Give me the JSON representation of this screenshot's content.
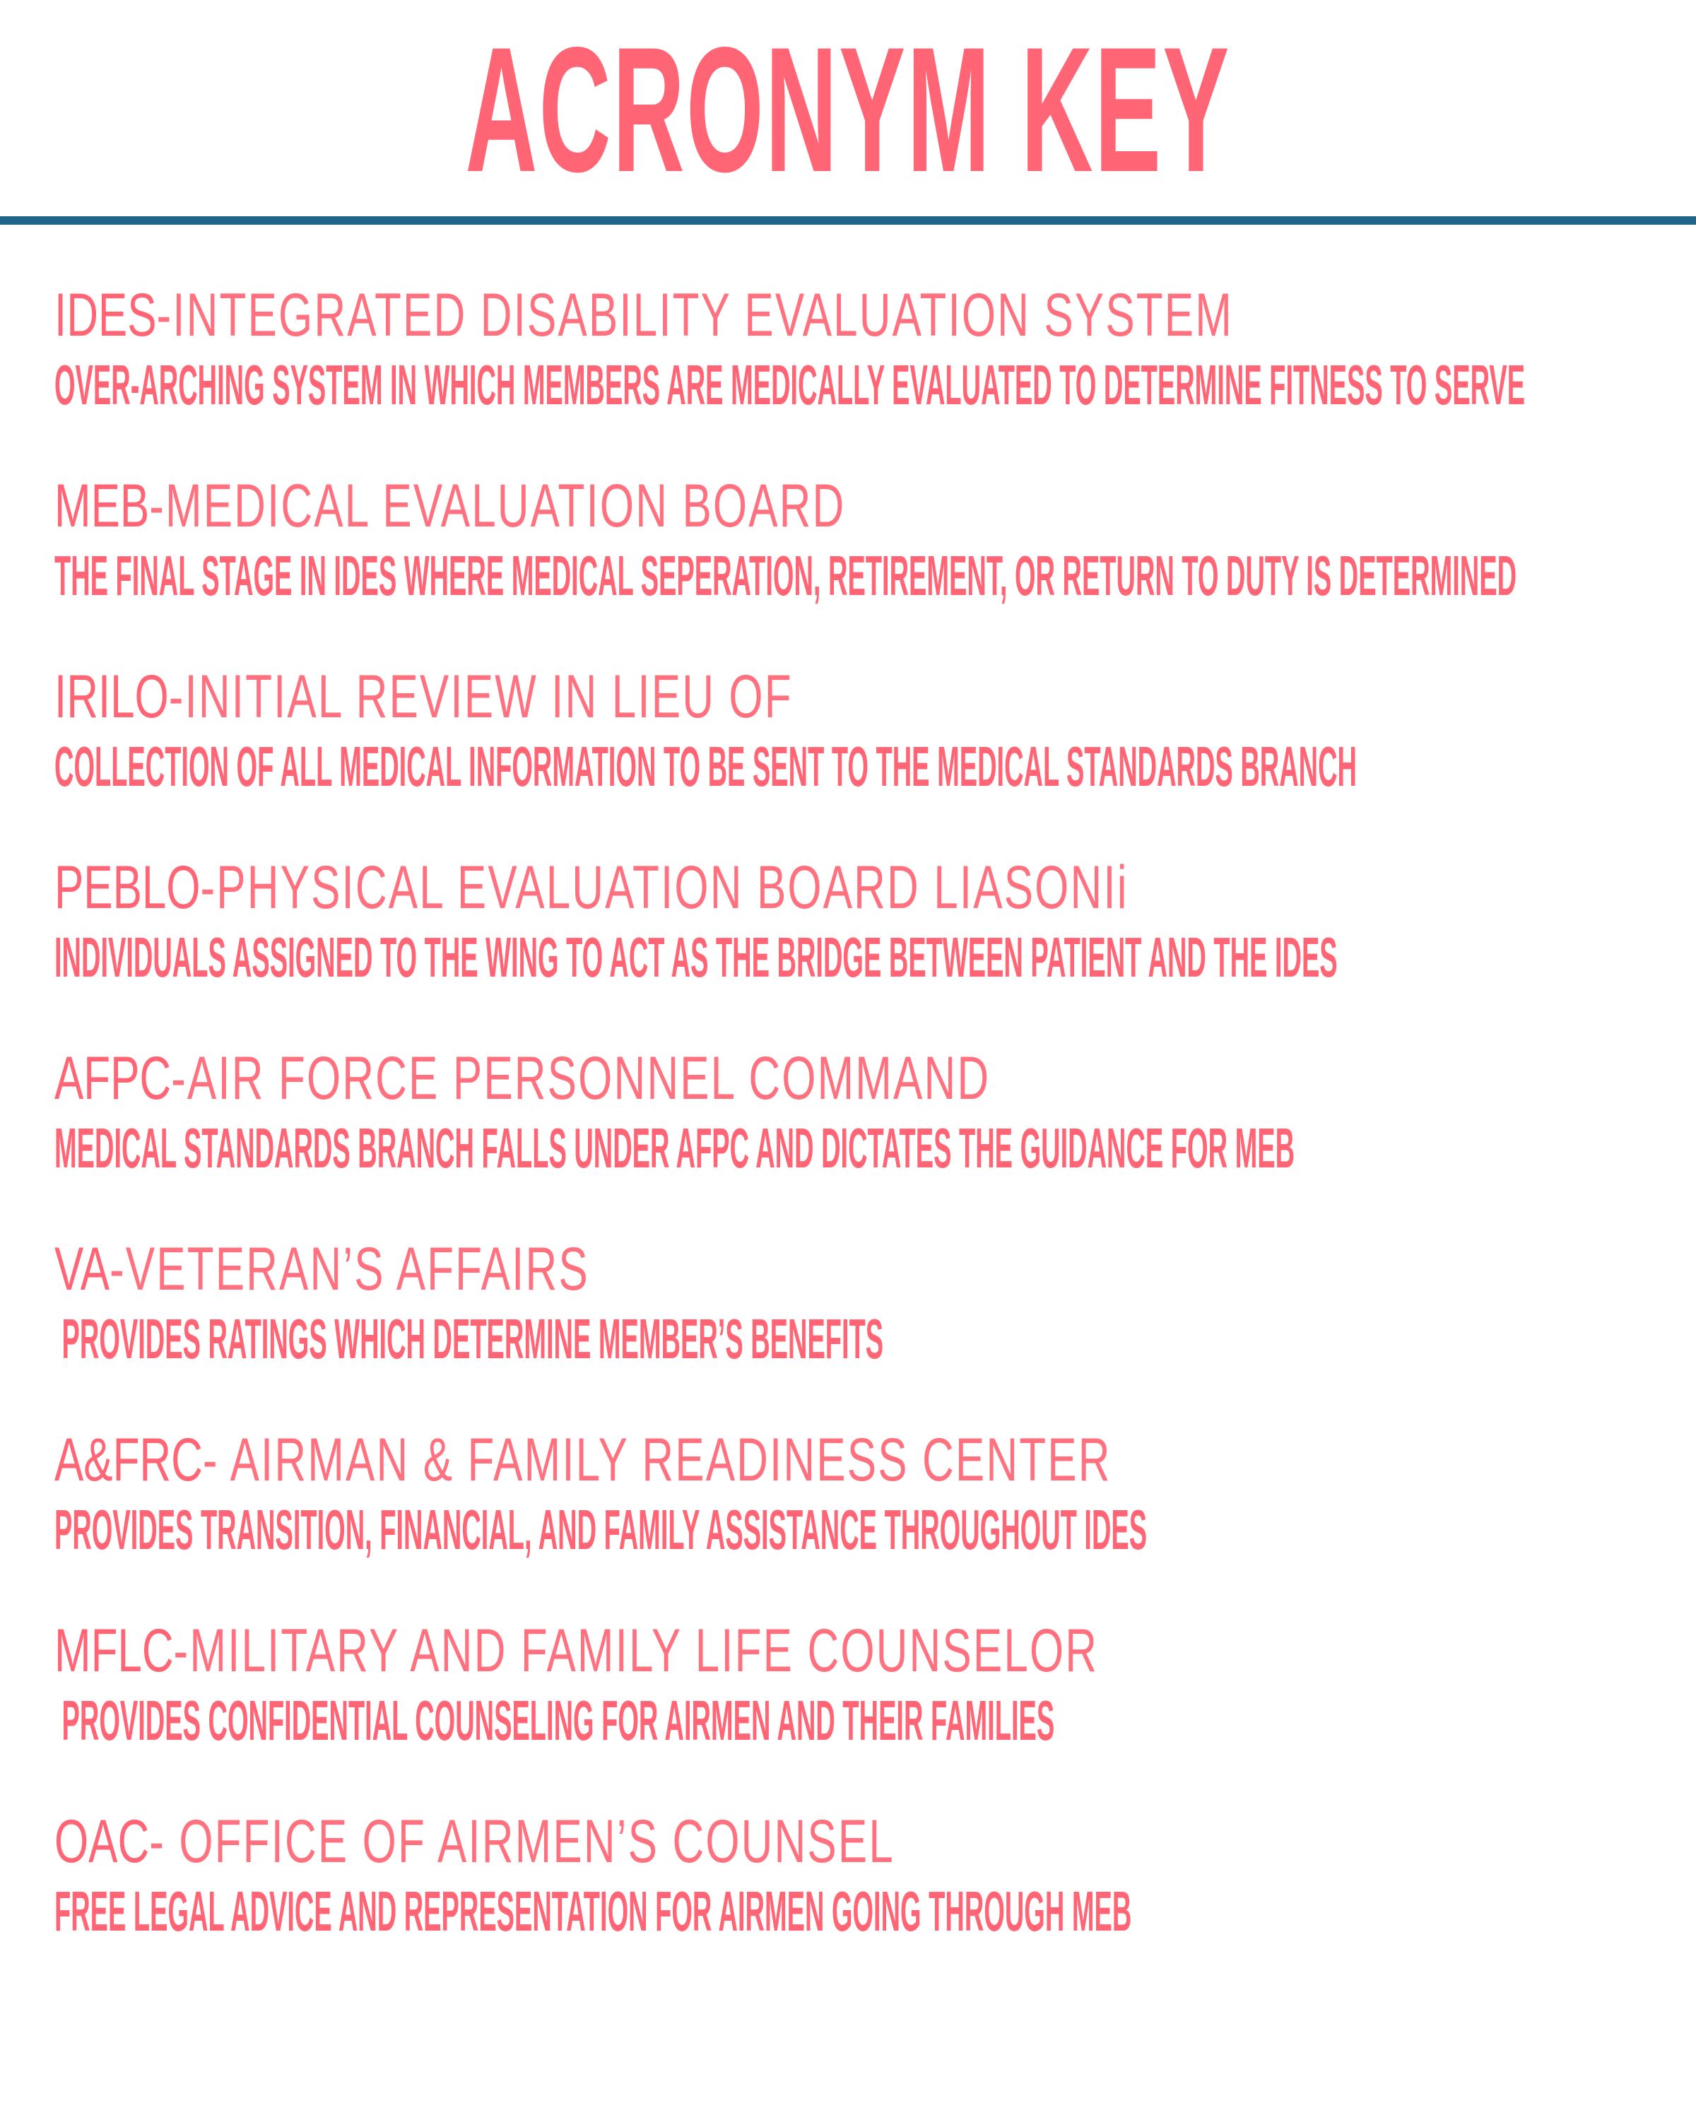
{
  "title": "ACRONYM KEY",
  "colors": {
    "text": "#FF6574",
    "rule": "#1D6589",
    "background": "#FFFFFF"
  },
  "entries": [
    {
      "acronym": "IDES",
      "expansion": "-INTEGRATED DISABILITY EVALUATION SYSTEM",
      "description": "OVER-ARCHING SYSTEM IN WHICH MEMBERS ARE MEDICALLY EVALUATED TO DETERMINE FITNESS TO SERVE"
    },
    {
      "acronym": "MEB",
      "expansion": "-MEDICAL EVALUATION BOARD",
      "description": "THE FINAL STAGE IN IDES WHERE MEDICAL SEPERATION, RETIREMENT, OR RETURN TO DUTY IS DETERMINED"
    },
    {
      "acronym": "IRILO",
      "expansion": "-INITIAL REVIEW IN LIEU OF",
      "description": "COLLECTION OF ALL MEDICAL INFORMATION TO BE SENT TO THE MEDICAL STANDARDS BRANCH"
    },
    {
      "acronym": "PEBLO",
      "expansion": "-PHYSICAL EVALUATION BOARD LIASONIi",
      "description": "INDIVIDUALS ASSIGNED TO THE WING TO ACT AS THE BRIDGE BETWEEN PATIENT AND THE IDES"
    },
    {
      "acronym": "AFPC",
      "expansion": "-AIR FORCE PERSONNEL COMMAND",
      "description": "MEDICAL STANDARDS BRANCH FALLS UNDER AFPC AND DICTATES THE GUIDANCE FOR MEB"
    },
    {
      "acronym": "VA",
      "expansion": "-VETERAN’S AFFAIRS",
      "description": " PROVIDES RATINGS WHICH DETERMINE MEMBER’S BENEFITS"
    },
    {
      "acronym": "A&FRC",
      "expansion": "- AIRMAN & FAMILY READINESS CENTER",
      "description": "PROVIDES TRANSITION, FINANCIAL, AND FAMILY ASSISTANCE THROUGHOUT IDES"
    },
    {
      "acronym": "MFLC",
      "expansion": "-MILITARY AND FAMILY LIFE COUNSELOR",
      "description": " PROVIDES CONFIDENTIAL COUNSELING FOR AIRMEN AND THEIR FAMILIES"
    },
    {
      "acronym": "OAC",
      "expansion": "- OFFICE OF AIRMEN’S COUNSEL",
      "description": "FREE LEGAL ADVICE AND REPRESENTATION FOR AIRMEN GOING THROUGH MEB"
    }
  ]
}
